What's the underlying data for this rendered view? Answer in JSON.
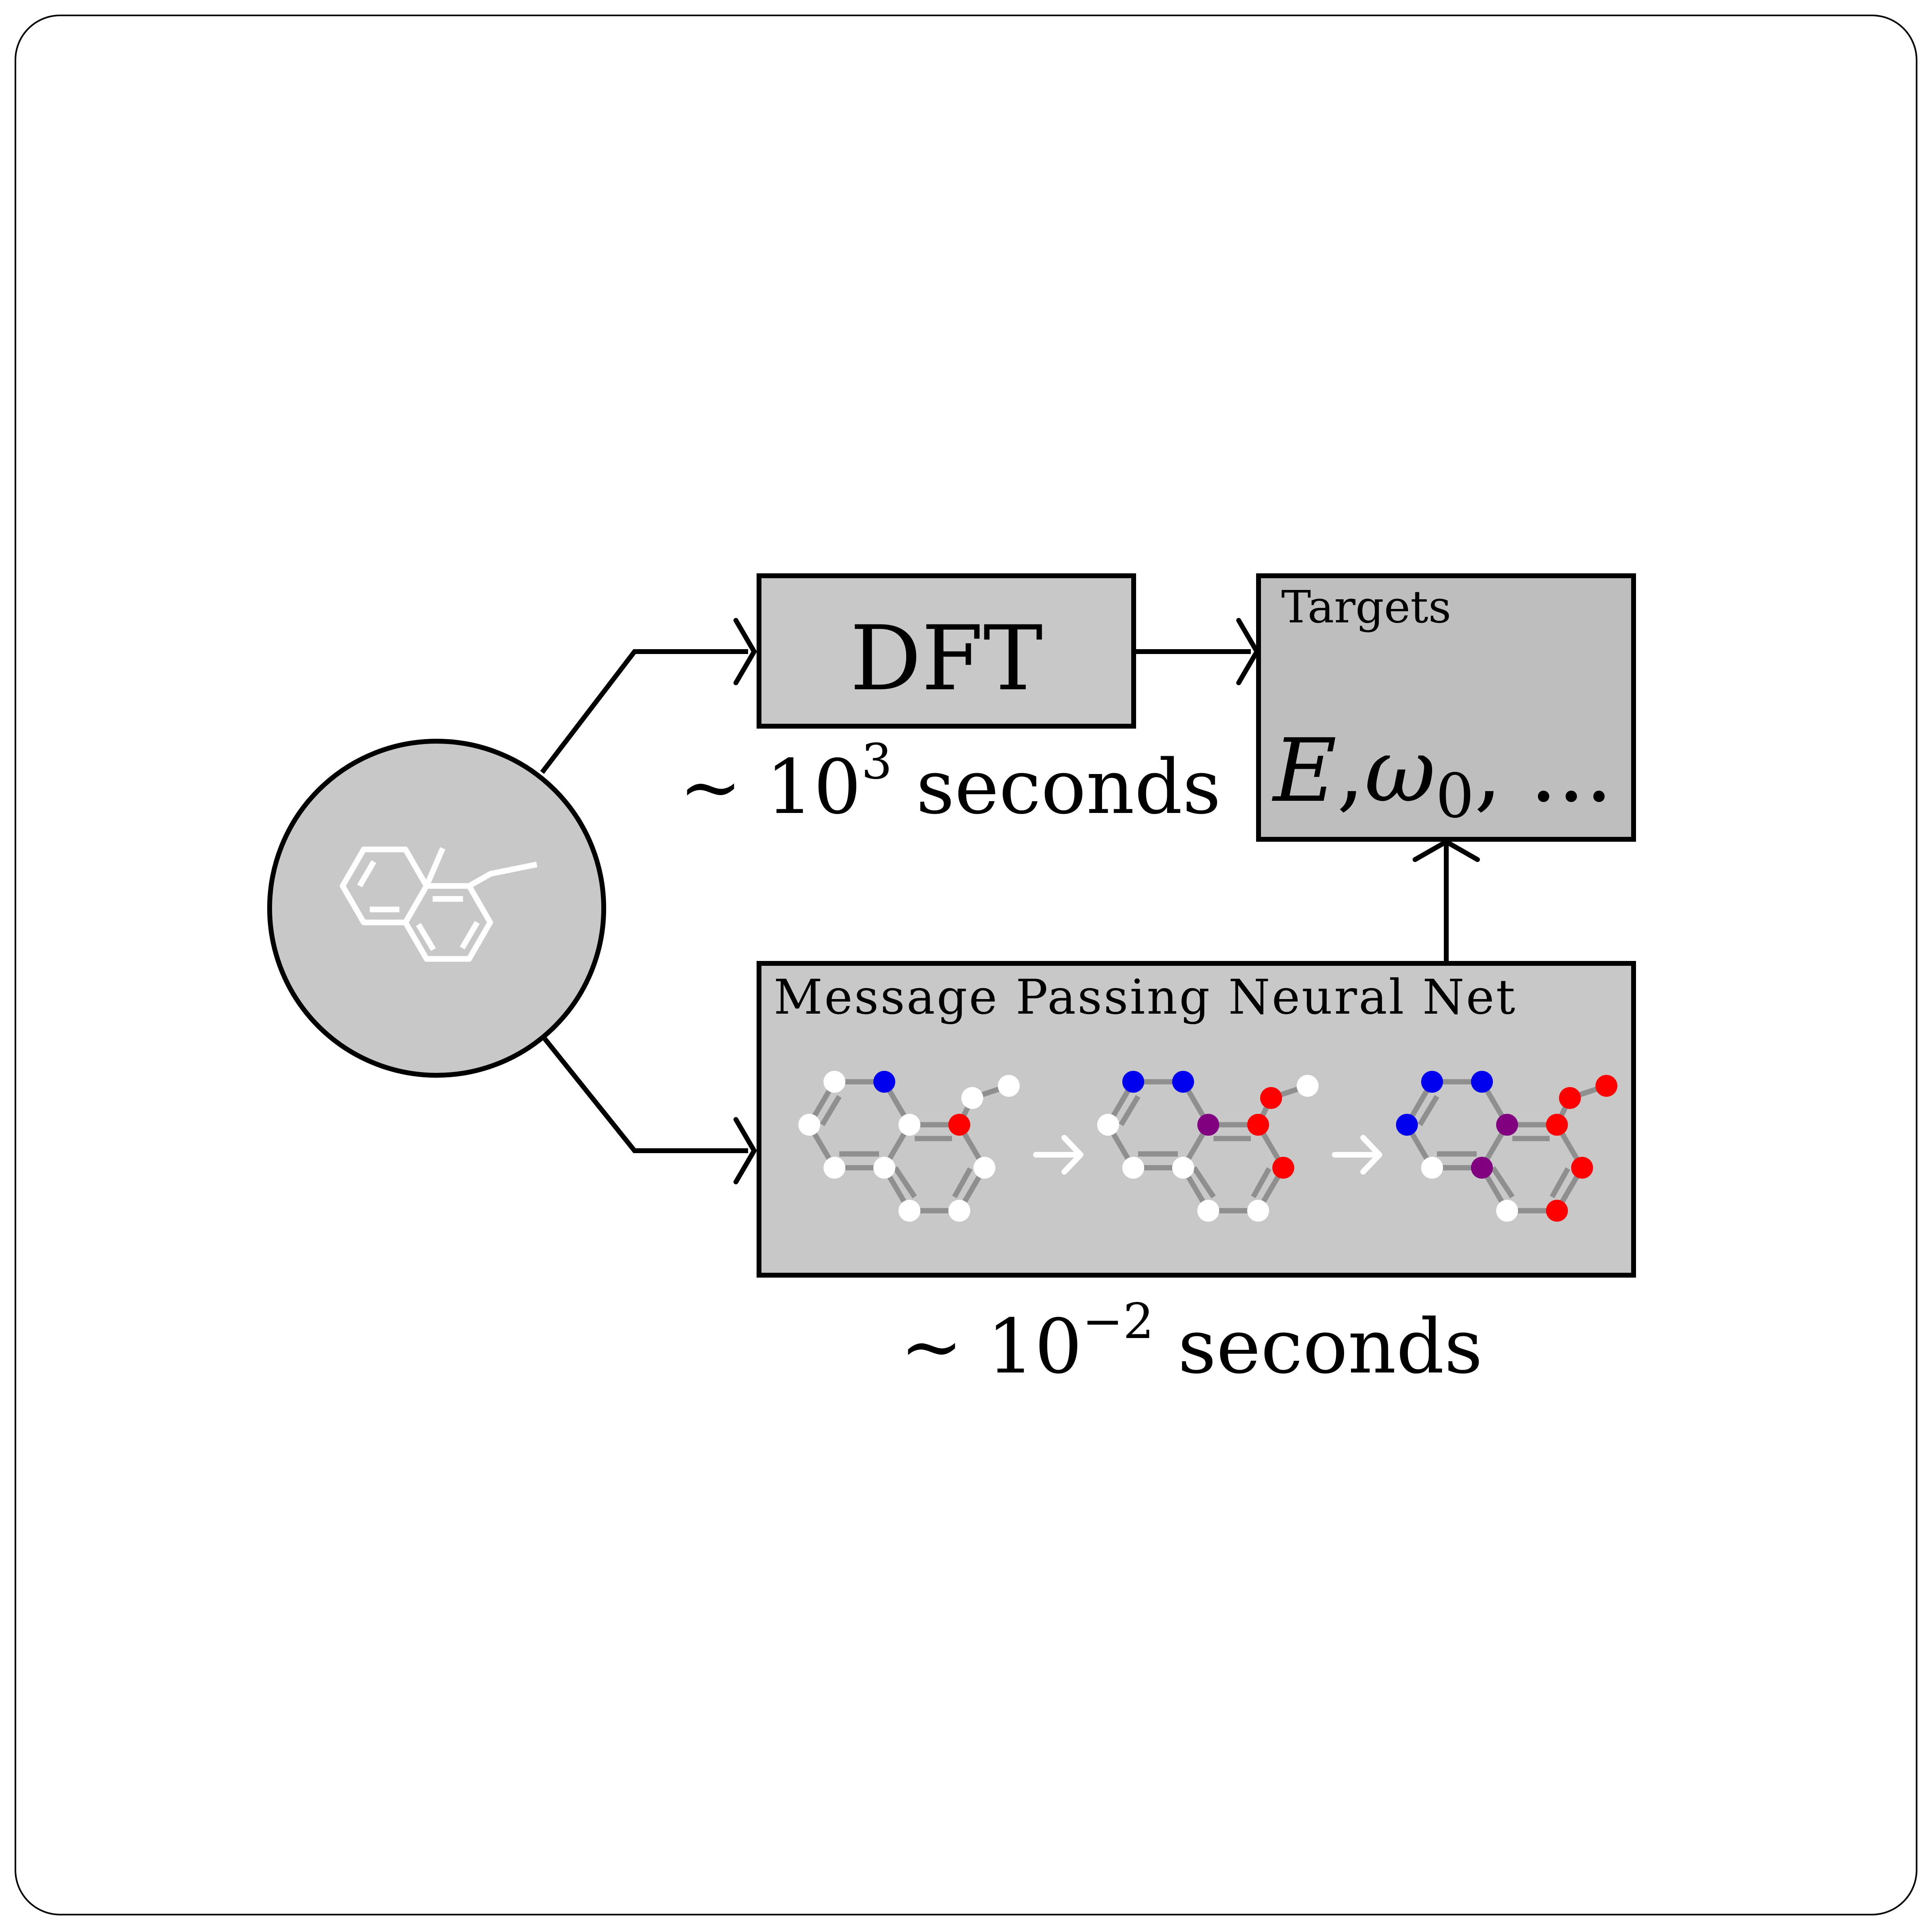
{
  "diagram": {
    "dft_label": "DFT",
    "dft_time": {
      "prefix": "~ 10",
      "exponent": "3",
      "suffix": " seconds"
    },
    "targets_title": "Targets",
    "targets_values": {
      "e": "E",
      "sep1": ",",
      "omega": "ω",
      "omega_sub": "0",
      "rest": ", ..."
    },
    "mpnn_title": "Message Passing Neural Net",
    "mpnn_time": {
      "prefix": "~ 10",
      "exponent": "−2",
      "suffix": " seconds"
    },
    "node_colors": {
      "blank": "#ffffff",
      "blue": "#0000ee",
      "purple": "#800080",
      "red": "#ff0000"
    },
    "box_fill": "#c8c8c8",
    "targets_fill": "#bebebe",
    "icons": [
      "molecule-icon",
      "molecular-graph-icon",
      "white-arrow-icon"
    ]
  }
}
